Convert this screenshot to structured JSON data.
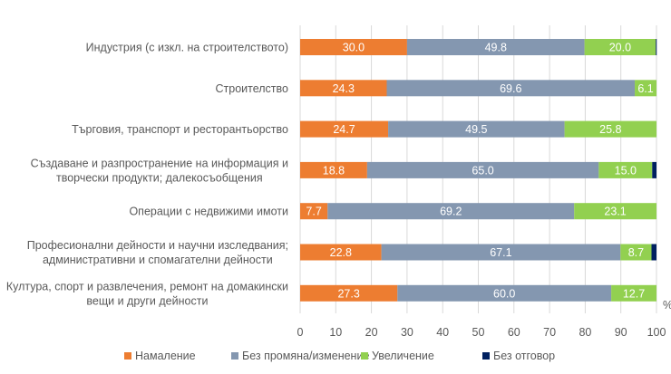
{
  "chart_data": {
    "type": "bar",
    "orientation": "horizontal",
    "stacked": true,
    "title": "",
    "xlabel": "",
    "ylabel": "",
    "unit_label": "%",
    "xlim": [
      0,
      100
    ],
    "x_ticks": [
      "0",
      "10",
      "20",
      "30",
      "40",
      "50",
      "60",
      "70",
      "80",
      "90",
      "100"
    ],
    "grid": "vertical",
    "legend_position": "bottom",
    "categories": [
      [
        "Индустрия (с изкл. на строителството)"
      ],
      [
        "Строителство"
      ],
      [
        "Търговия, транспорт и ресторантьорство"
      ],
      [
        "Създаване и разпространение на информация и",
        "творчески продукти; далекосъобщения"
      ],
      [
        "Операции с недвижими имоти"
      ],
      [
        "Професионални дейности и научни изследвания;",
        "административни и спомагателни дейности"
      ],
      [
        "Култура, спорт и развлечения, ремонт на домакински",
        "вещи и други дейности"
      ]
    ],
    "series": [
      {
        "name": "Намаление",
        "color": "#ED7D31",
        "values": [
          30.0,
          24.3,
          24.7,
          18.8,
          7.7,
          22.8,
          27.3
        ],
        "show_labels": true
      },
      {
        "name": "Без промяна/изменение",
        "color": "#8497B0",
        "values": [
          49.8,
          69.6,
          49.5,
          65.0,
          69.2,
          67.1,
          60.0
        ],
        "show_labels": true
      },
      {
        "name": "Увеличение",
        "color": "#92D050",
        "values": [
          20.0,
          6.1,
          25.8,
          15.0,
          23.1,
          8.7,
          12.7
        ],
        "show_labels": true
      },
      {
        "name": "Без отговор",
        "color": "#002060",
        "values": [
          0.2,
          0.0,
          0.0,
          1.2,
          0.0,
          1.4,
          0.0
        ],
        "show_labels": false
      }
    ]
  }
}
